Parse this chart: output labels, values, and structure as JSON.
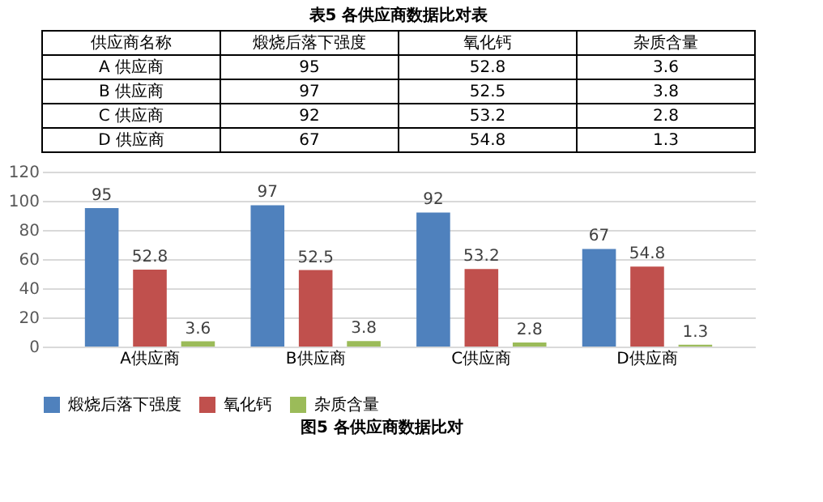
{
  "chart_data": [
    {
      "type": "other",
      "title": "表5 各供应商数据比对表",
      "categories": [
        "供应商名称",
        "煅烧后落下强度",
        "氧化钙",
        "杂质含量"
      ],
      "annotations": [
        "A 供应商",
        "95",
        "52.8",
        "3.6",
        "B 供应商",
        "97",
        "52.5",
        "3.8",
        "C 供应商",
        "92",
        "53.2",
        "2.8",
        "D 供应商",
        "67",
        "54.8",
        "1.3"
      ]
    },
    {
      "type": "bar",
      "categories": [
        "A供应商",
        "B供应商",
        "C供应商",
        "D供应商"
      ],
      "series": [
        {
          "name": "煅烧后落下强度",
          "color": "#4f81bd",
          "values": [
            95,
            97,
            92,
            67
          ]
        },
        {
          "name": "氧化钙",
          "color": "#c0504d",
          "values": [
            52.8,
            52.5,
            53.2,
            54.8
          ]
        },
        {
          "name": "杂质含量",
          "color": "#9bbb59",
          "values": [
            3.6,
            3.8,
            2.8,
            1.3
          ]
        }
      ],
      "ylim": [
        0,
        120
      ],
      "yticks": [
        0,
        20,
        40,
        60,
        80,
        100,
        120
      ],
      "grid": "y",
      "legend": "bottom",
      "data_labels": true,
      "annotations": [
        "图5 各供应商数据比对"
      ]
    }
  ]
}
